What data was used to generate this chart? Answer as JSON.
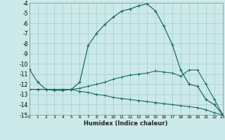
{
  "xlabel": "Humidex (Indice chaleur)",
  "bg_color": "#cce9e9",
  "grid_color": "#aad0d0",
  "line_color": "#1a6b6b",
  "xlim": [
    0,
    23
  ],
  "ylim": [
    -15,
    -4
  ],
  "xticks": [
    0,
    1,
    2,
    3,
    4,
    5,
    6,
    7,
    8,
    9,
    10,
    11,
    12,
    13,
    14,
    15,
    16,
    17,
    18,
    19,
    20,
    21,
    22,
    23
  ],
  "yticks": [
    -4,
    -5,
    -6,
    -7,
    -8,
    -9,
    -10,
    -11,
    -12,
    -13,
    -14,
    -15
  ],
  "line1_x": [
    0,
    1,
    2,
    3,
    4,
    5,
    6,
    7,
    8,
    9,
    10,
    11,
    12,
    13,
    14,
    15,
    16,
    17,
    18,
    19,
    20,
    21,
    22,
    23
  ],
  "line1_y": [
    -10.5,
    -11.8,
    -12.5,
    -12.6,
    -12.6,
    -12.5,
    -11.8,
    -8.2,
    -7.0,
    -6.1,
    -5.4,
    -4.8,
    -4.6,
    -4.3,
    -4.1,
    -4.8,
    -6.3,
    -8.1,
    -10.6,
    -12.0,
    -12.2,
    -13.5,
    -14.0,
    -15.0
  ],
  "line2_x": [
    0,
    1,
    2,
    3,
    4,
    5,
    6,
    7,
    8,
    9,
    10,
    11,
    12,
    13,
    14,
    15,
    16,
    17,
    18,
    19,
    20,
    21,
    22,
    23
  ],
  "line2_y": [
    -12.5,
    -12.5,
    -12.5,
    -12.5,
    -12.5,
    -12.5,
    -12.4,
    -12.2,
    -12.0,
    -11.8,
    -11.5,
    -11.3,
    -11.1,
    -11.0,
    -10.9,
    -10.7,
    -10.8,
    -10.9,
    -11.2,
    -10.6,
    -10.6,
    -12.0,
    -13.5,
    -15.0
  ],
  "line3_x": [
    0,
    1,
    2,
    3,
    4,
    5,
    6,
    7,
    8,
    9,
    10,
    11,
    12,
    13,
    14,
    15,
    16,
    17,
    18,
    19,
    20,
    21,
    22,
    23
  ],
  "line3_y": [
    -12.5,
    -12.5,
    -12.5,
    -12.5,
    -12.5,
    -12.5,
    -12.7,
    -12.8,
    -13.0,
    -13.1,
    -13.3,
    -13.4,
    -13.5,
    -13.6,
    -13.7,
    -13.8,
    -13.9,
    -14.0,
    -14.1,
    -14.2,
    -14.3,
    -14.5,
    -14.8,
    -15.0
  ]
}
